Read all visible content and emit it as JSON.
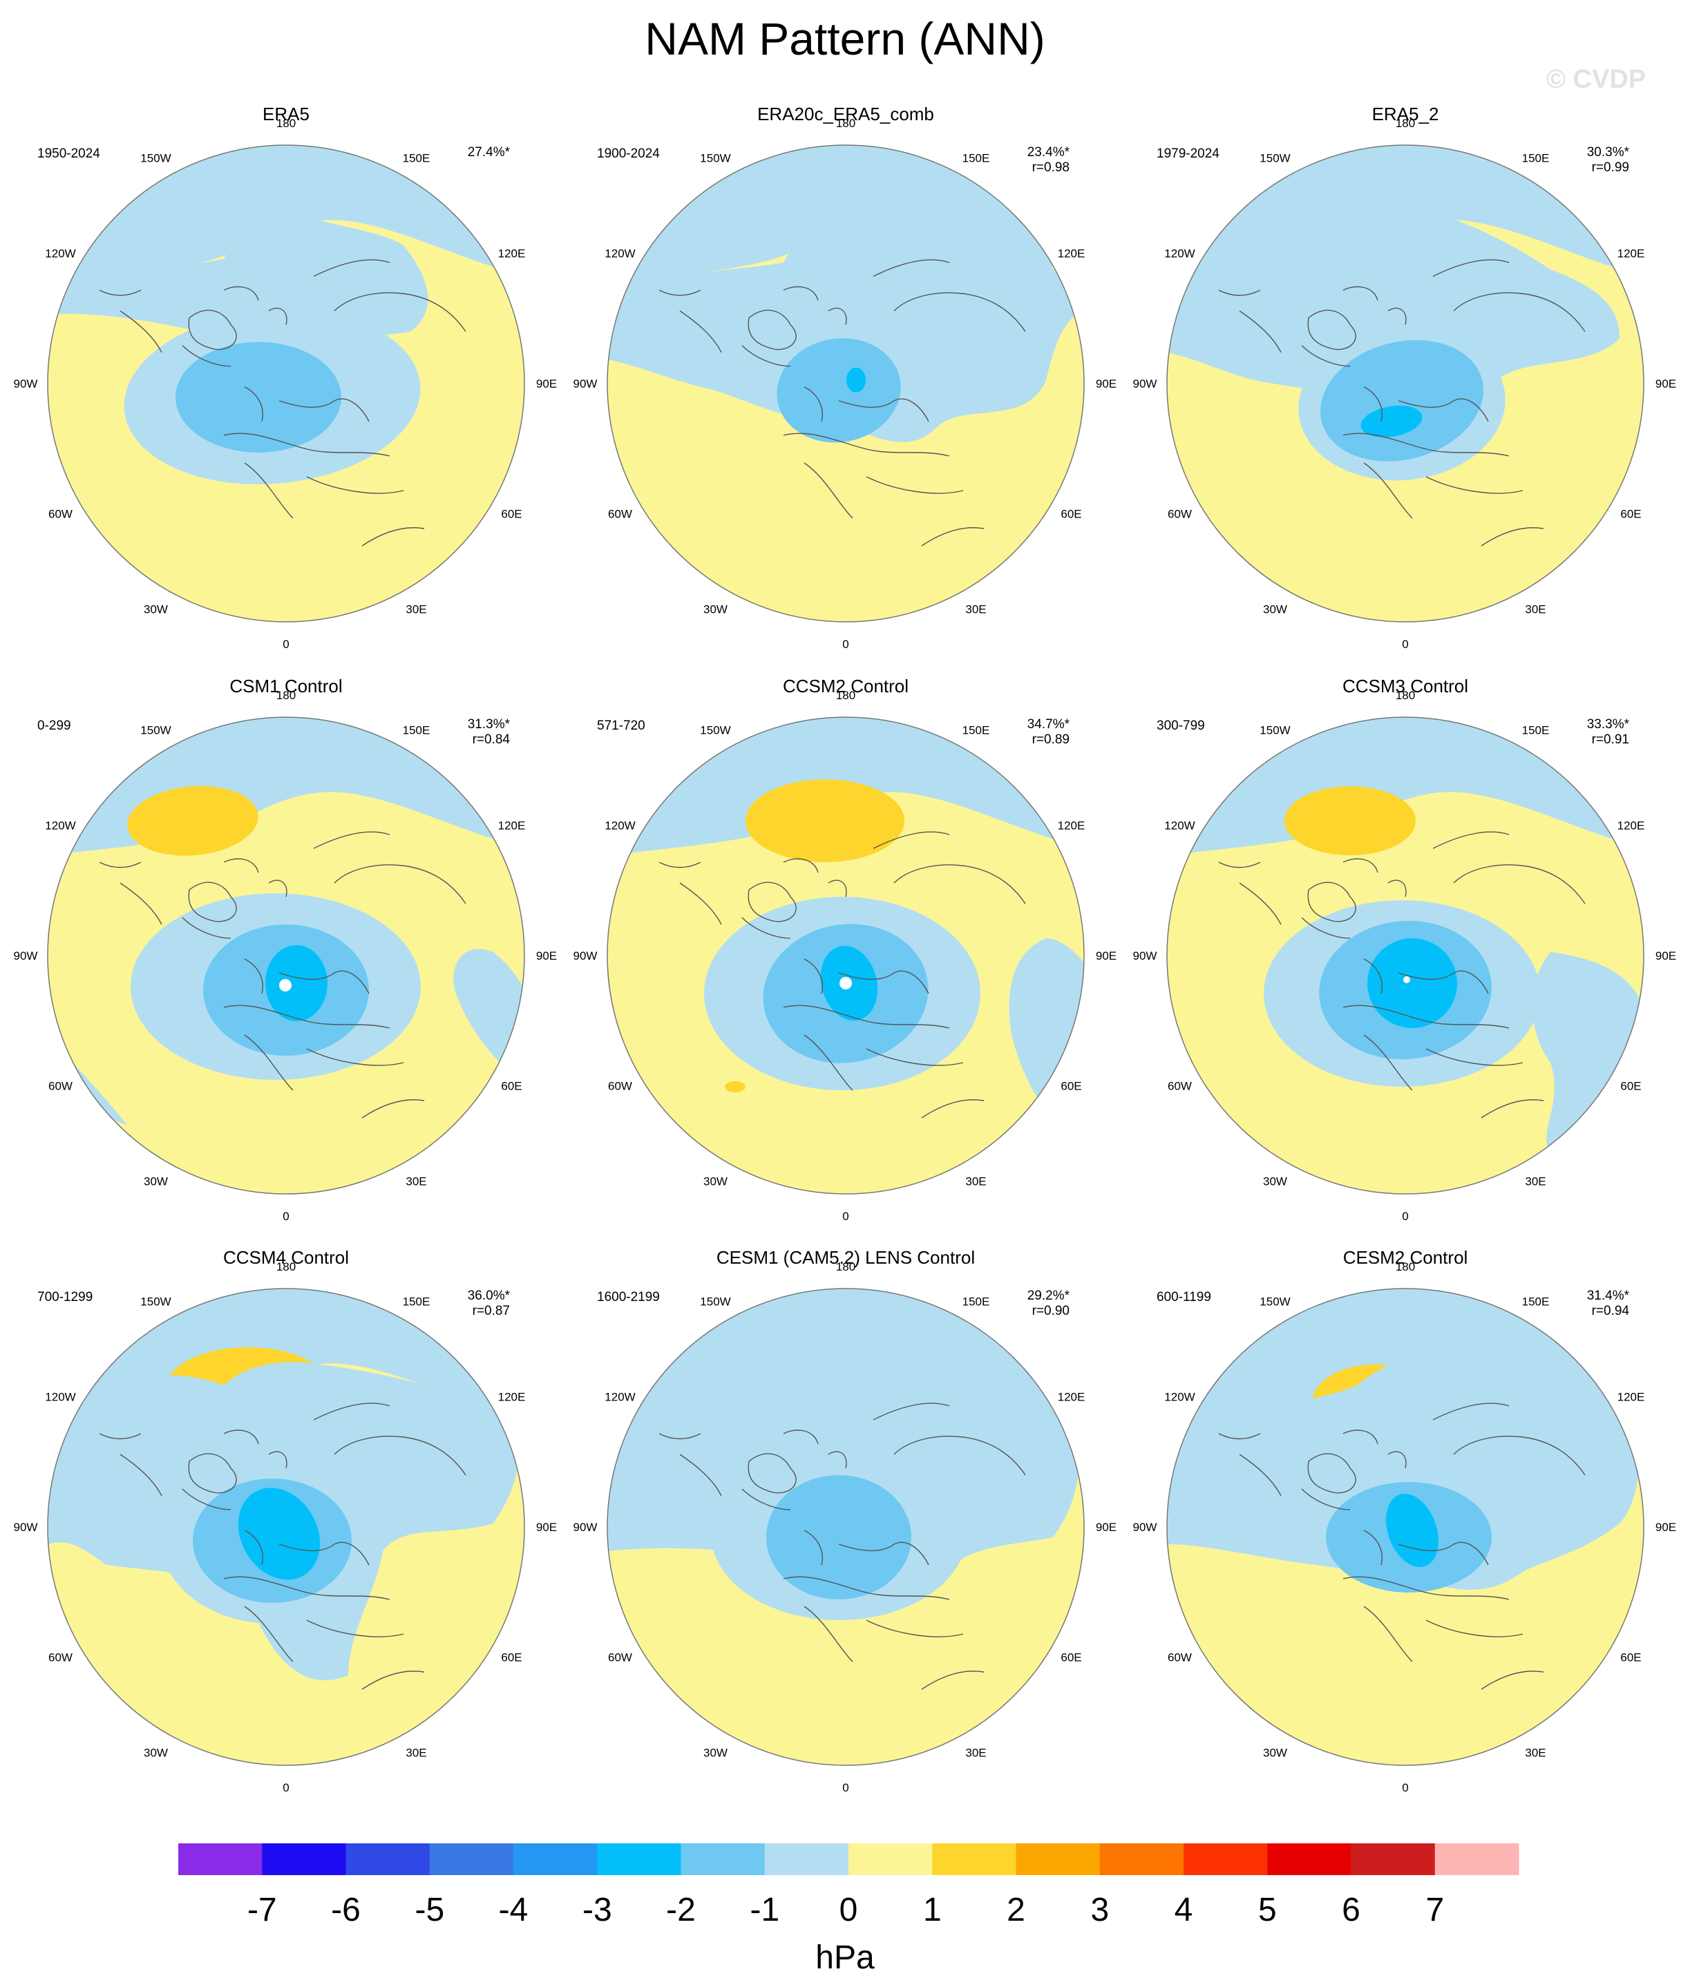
{
  "title": "NAM Pattern (ANN)",
  "watermark": "© CVDP",
  "lon_labels": [
    "180",
    "150E",
    "120E",
    "90E",
    "60E",
    "30E",
    "0",
    "30W",
    "60W",
    "90W",
    "120W",
    "150W"
  ],
  "panels": [
    {
      "name": "ERA5",
      "years": "1950-2024",
      "pct": "27.4%*",
      "r": ""
    },
    {
      "name": "ERA20c_ERA5_comb",
      "years": "1900-2024",
      "pct": "23.4%*",
      "r": "r=0.98"
    },
    {
      "name": "ERA5_2",
      "years": "1979-2024",
      "pct": "30.3%*",
      "r": "r=0.99"
    },
    {
      "name": "CSM1 Control",
      "years": "0-299",
      "pct": "31.3%*",
      "r": "r=0.84"
    },
    {
      "name": "CCSM2 Control",
      "years": "571-720",
      "pct": "34.7%*",
      "r": "r=0.89"
    },
    {
      "name": "CCSM3 Control",
      "years": "300-799",
      "pct": "33.3%*",
      "r": "r=0.91"
    },
    {
      "name": "CCSM4 Control",
      "years": "700-1299",
      "pct": "36.0%*",
      "r": "r=0.87"
    },
    {
      "name": "CESM1 (CAM5.2) LENS Control",
      "years": "1600-2199",
      "pct": "29.2%*",
      "r": "r=0.90"
    },
    {
      "name": "CESM2 Control",
      "years": "600-1199",
      "pct": "31.4%*",
      "r": "r=0.94"
    }
  ],
  "colorbar": {
    "unit": "hPa",
    "tick_labels": [
      "-7",
      "-6",
      "-5",
      "-4",
      "-3",
      "-2",
      "-1",
      "0",
      "1",
      "2",
      "3",
      "4",
      "5",
      "6",
      "7"
    ],
    "colors": [
      "#8a2be8",
      "#1e0cf2",
      "#2f48e6",
      "#3a78e6",
      "#2497f5",
      "#02bff9",
      "#6ec8f2",
      "#b3def2",
      "#fcf596",
      "#fdd52d",
      "#fca600",
      "#fc7500",
      "#fc3300",
      "#e70000",
      "#cc1e1e",
      "#ffb4b4"
    ]
  }
}
